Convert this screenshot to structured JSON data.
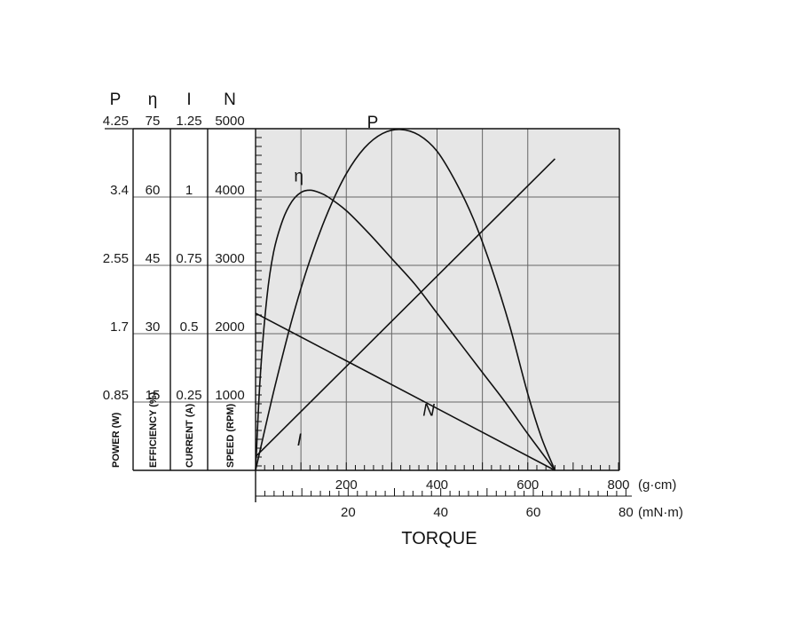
{
  "chart_data": {
    "type": "line",
    "title": "",
    "xlabel": "TORQUE",
    "x_axes": [
      {
        "unit": "(g·cm)",
        "range": [
          0,
          800
        ],
        "ticks": [
          200,
          400,
          600,
          800
        ]
      },
      {
        "unit": "(mN·m)",
        "range": [
          0,
          78.4
        ],
        "ticks": [
          20,
          40,
          60,
          80
        ]
      }
    ],
    "y_axes": [
      {
        "symbol": "P",
        "label": "POWER (W)",
        "range": [
          0,
          4.25
        ],
        "ticks": [
          "0.85",
          "1.7",
          "2.55",
          "3.4",
          "4.25"
        ]
      },
      {
        "symbol": "η",
        "label": "EFFICIENCY (%)",
        "range": [
          0,
          75
        ],
        "ticks": [
          "15",
          "30",
          "45",
          "60",
          "75"
        ]
      },
      {
        "symbol": "I",
        "label": "CURRENT (A)",
        "range": [
          0,
          1.25
        ],
        "ticks": [
          "0.25",
          "0.5",
          "0.75",
          "1",
          "1.25"
        ]
      },
      {
        "symbol": "N",
        "label": "SPEED (RPM)",
        "range": [
          0,
          5000
        ],
        "ticks": [
          "1000",
          "2000",
          "3000",
          "4000",
          "5000"
        ]
      }
    ],
    "grid": true,
    "series": [
      {
        "name": "N",
        "axis": "N",
        "x": [
          0,
          660
        ],
        "values": [
          2300,
          0
        ]
      },
      {
        "name": "I",
        "axis": "I",
        "x": [
          0,
          660
        ],
        "values": [
          0.05,
          1.14
        ]
      },
      {
        "name": "P",
        "axis": "P",
        "x": [
          0,
          40,
          80,
          120,
          160,
          200,
          240,
          280,
          320,
          360,
          400,
          440,
          480,
          520,
          560,
          600,
          630,
          660
        ],
        "values": [
          0,
          0.98,
          1.87,
          2.62,
          3.22,
          3.69,
          4.01,
          4.19,
          4.24,
          4.17,
          3.97,
          3.6,
          3.13,
          2.52,
          1.8,
          0.95,
          0.41,
          0
        ]
      },
      {
        "name": "η",
        "axis": "η",
        "x": [
          0,
          10,
          25,
          40,
          60,
          80,
          100,
          120,
          140,
          160,
          200,
          250,
          300,
          350,
          400,
          450,
          500,
          550,
          600,
          630,
          660
        ],
        "values": [
          0,
          20,
          38,
          48,
          55,
          59,
          61,
          61.5,
          61,
          60,
          57,
          52,
          46.5,
          41,
          34.5,
          28,
          21.5,
          15,
          8,
          4,
          0
        ]
      }
    ]
  }
}
